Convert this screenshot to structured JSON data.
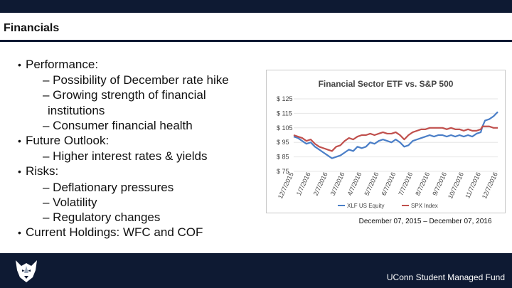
{
  "slide": {
    "title": "Financials",
    "footer": "UConn Student Managed Fund",
    "caption": "December 07, 2015 – December 07, 2016",
    "colors": {
      "bar": "#0e1a33",
      "xlf": "#4a7ec7",
      "spx": "#c0504d"
    }
  },
  "bullets": [
    {
      "text": "Performance:",
      "level": 1
    },
    {
      "text": "– Possibility of December rate hike",
      "level": 2
    },
    {
      "text": "– Growing strength of financial",
      "level": 2
    },
    {
      "text": "institutions",
      "level": 3
    },
    {
      "text": "– Consumer financial health",
      "level": 2
    },
    {
      "text": "Future Outlook:",
      "level": 1
    },
    {
      "text": "– Higher interest rates & yields",
      "level": 2
    },
    {
      "text": "Risks:",
      "level": 1
    },
    {
      "text": "– Deflationary pressures",
      "level": 2
    },
    {
      "text": "– Volatility",
      "level": 2
    },
    {
      "text": "– Regulatory changes",
      "level": 2
    },
    {
      "text": "Current Holdings: WFC and COF",
      "level": 1
    }
  ],
  "chart_data": {
    "type": "line",
    "title": "Financial Sector ETF vs. S&P 500",
    "xlabel": "",
    "ylabel": "",
    "ylim": [
      75,
      125
    ],
    "y_ticks": [
      75,
      85,
      95,
      105,
      115,
      125
    ],
    "y_tick_labels": [
      "$ 75",
      "$ 85",
      "$ 95",
      "$ 105",
      "$ 115",
      "$ 125"
    ],
    "x_tick_labels": [
      "12/7/2015",
      "1/7/2016",
      "2/7/2016",
      "3/7/2016",
      "4/7/2016",
      "5/7/2016",
      "6/7/2016",
      "7/7/2016",
      "8/7/2016",
      "9/7/2016",
      "10/7/2016",
      "11/7/2016",
      "12/7/2016"
    ],
    "legend": [
      "XLF US Equity",
      "SPX Index"
    ],
    "legend_position": "bottom",
    "series": [
      {
        "name": "XLF US Equity",
        "color": "#4a7ec7",
        "x": [
          0,
          0.25,
          0.5,
          0.75,
          1,
          1.25,
          1.5,
          1.75,
          2,
          2.25,
          2.5,
          2.75,
          3,
          3.25,
          3.5,
          3.75,
          4,
          4.25,
          4.5,
          4.75,
          5,
          5.25,
          5.5,
          5.75,
          6,
          6.25,
          6.5,
          6.75,
          7,
          7.25,
          7.5,
          7.75,
          8,
          8.25,
          8.5,
          8.75,
          9,
          9.25,
          9.5,
          9.75,
          10,
          10.25,
          10.5,
          10.75,
          11,
          11.1,
          11.25,
          11.5,
          11.75,
          12
        ],
        "values": [
          99,
          98,
          96,
          94,
          95,
          92,
          90,
          88,
          86,
          84,
          85,
          86,
          88,
          90,
          89,
          92,
          91,
          92,
          95,
          94,
          96,
          97,
          96,
          95,
          97,
          95,
          92,
          93,
          96,
          97,
          98,
          99,
          100,
          99,
          100,
          100,
          99,
          100,
          99,
          100,
          99,
          100,
          99,
          101,
          102,
          106,
          110,
          111,
          113,
          116
        ]
      },
      {
        "name": "SPX Index",
        "color": "#c0504d",
        "x": [
          0,
          0.25,
          0.5,
          0.75,
          1,
          1.25,
          1.5,
          1.75,
          2,
          2.25,
          2.5,
          2.75,
          3,
          3.25,
          3.5,
          3.75,
          4,
          4.25,
          4.5,
          4.75,
          5,
          5.25,
          5.5,
          5.75,
          6,
          6.25,
          6.5,
          6.75,
          7,
          7.25,
          7.5,
          7.75,
          8,
          8.25,
          8.5,
          8.75,
          9,
          9.25,
          9.5,
          9.75,
          10,
          10.25,
          10.5,
          10.75,
          11,
          11.1,
          11.25,
          11.5,
          11.75,
          12
        ],
        "values": [
          100,
          99,
          98,
          96,
          97,
          94,
          92,
          91,
          90,
          89,
          92,
          93,
          96,
          98,
          97,
          99,
          100,
          100,
          101,
          100,
          101,
          102,
          101,
          101,
          102,
          100,
          97,
          100,
          102,
          103,
          104,
          104,
          105,
          105,
          105,
          105,
          104,
          105,
          104,
          104,
          103,
          104,
          103,
          103,
          104,
          106,
          106,
          106,
          105,
          105
        ]
      }
    ]
  }
}
